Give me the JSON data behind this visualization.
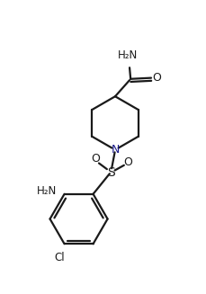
{
  "background_color": "#ffffff",
  "line_color": "#1a1a1a",
  "blue_color": "#1a1a8a",
  "line_width": 1.6,
  "figsize": [
    2.3,
    3.27
  ],
  "dpi": 100,
  "xlim": [
    0,
    10
  ],
  "ylim": [
    0,
    14
  ]
}
